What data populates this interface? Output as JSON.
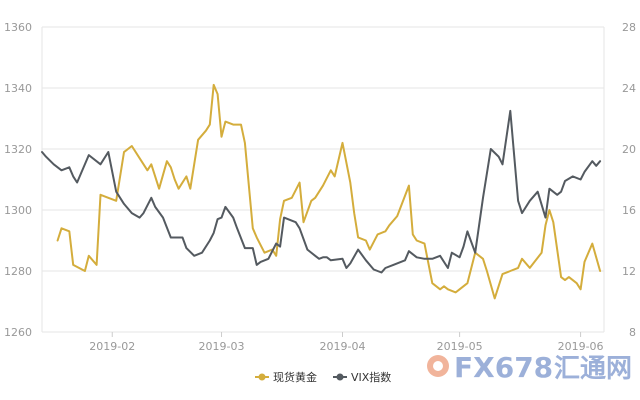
{
  "chart_data": {
    "type": "line",
    "x_range": [
      "2019-01-14",
      "2019-06-07"
    ],
    "x_tick_labels": [
      "2019-02",
      "2019-03",
      "2019-04",
      "2019-05",
      "2019-06"
    ],
    "y_left": {
      "min": 1260,
      "max": 1360,
      "ticks": [
        1260,
        1280,
        1300,
        1320,
        1340,
        1360
      ]
    },
    "y_right": {
      "min": 8,
      "max": 28,
      "ticks": [
        8,
        12,
        16,
        20,
        24,
        28
      ]
    },
    "grid": "horizontal",
    "legend_position": "bottom-center",
    "series": [
      {
        "name": "现货黄金",
        "axis": "left",
        "color": "#d4ad3c",
        "x": [
          "2019-01-18",
          "2019-01-19",
          "2019-01-21",
          "2019-01-22",
          "2019-01-25",
          "2019-01-26",
          "2019-01-28",
          "2019-01-29",
          "2019-01-31",
          "2019-02-02",
          "2019-02-04",
          "2019-02-06",
          "2019-02-08",
          "2019-02-10",
          "2019-02-11",
          "2019-02-13",
          "2019-02-15",
          "2019-02-16",
          "2019-02-17",
          "2019-02-18",
          "2019-02-20",
          "2019-02-21",
          "2019-02-22",
          "2019-02-23",
          "2019-02-25",
          "2019-02-26",
          "2019-02-27",
          "2019-02-28",
          "2019-03-01",
          "2019-03-02",
          "2019-03-04",
          "2019-03-06",
          "2019-03-07",
          "2019-03-09",
          "2019-03-10",
          "2019-03-12",
          "2019-03-14",
          "2019-03-15",
          "2019-03-16",
          "2019-03-17",
          "2019-03-19",
          "2019-03-21",
          "2019-03-22",
          "2019-03-24",
          "2019-03-25",
          "2019-03-27",
          "2019-03-29",
          "2019-03-30",
          "2019-04-01",
          "2019-04-03",
          "2019-04-04",
          "2019-04-05",
          "2019-04-07",
          "2019-04-08",
          "2019-04-10",
          "2019-04-12",
          "2019-04-13",
          "2019-04-15",
          "2019-04-18",
          "2019-04-19",
          "2019-04-20",
          "2019-04-22",
          "2019-04-24",
          "2019-04-26",
          "2019-04-27",
          "2019-04-28",
          "2019-04-30",
          "2019-05-01",
          "2019-05-03",
          "2019-05-05",
          "2019-05-07",
          "2019-05-08",
          "2019-05-10",
          "2019-05-12",
          "2019-05-14",
          "2019-05-16",
          "2019-05-17",
          "2019-05-19",
          "2019-05-22",
          "2019-05-23",
          "2019-05-24",
          "2019-05-25",
          "2019-05-27",
          "2019-05-28",
          "2019-05-29",
          "2019-05-31",
          "2019-06-01",
          "2019-06-02",
          "2019-06-04",
          "2019-06-06"
        ],
        "values": [
          1290,
          1294,
          1293,
          1282,
          1280,
          1285,
          1282,
          1305,
          1304,
          1303,
          1319,
          1321,
          1317,
          1313,
          1315,
          1307,
          1316,
          1314,
          1310,
          1307,
          1311,
          1307,
          1315,
          1323,
          1326,
          1328,
          1341,
          1338,
          1324,
          1329,
          1328,
          1328,
          1322,
          1294,
          1291,
          1286,
          1287,
          1285,
          1297,
          1303,
          1304,
          1309,
          1296,
          1303,
          1304,
          1308,
          1313,
          1311,
          1322,
          1309,
          1299,
          1291,
          1290,
          1287,
          1292,
          1293,
          1295,
          1298,
          1308,
          1292,
          1290,
          1289,
          1276,
          1274,
          1275,
          1274,
          1273,
          1274,
          1276,
          1286,
          1284,
          1280,
          1271,
          1279,
          1280,
          1281,
          1284,
          1281,
          1286,
          1295,
          1300,
          1296,
          1278,
          1277,
          1278,
          1276,
          1274,
          1283,
          1289,
          1280
        ]
      },
      {
        "name": "VIX指数",
        "axis": "right",
        "color": "#545a60",
        "x": [
          "2019-01-14",
          "2019-01-15",
          "2019-01-17",
          "2019-01-19",
          "2019-01-21",
          "2019-01-22",
          "2019-01-23",
          "2019-01-24",
          "2019-01-26",
          "2019-01-29",
          "2019-01-31",
          "2019-02-02",
          "2019-02-04",
          "2019-02-06",
          "2019-02-08",
          "2019-02-09",
          "2019-02-11",
          "2019-02-12",
          "2019-02-14",
          "2019-02-16",
          "2019-02-17",
          "2019-02-19",
          "2019-02-20",
          "2019-02-22",
          "2019-02-24",
          "2019-02-26",
          "2019-02-27",
          "2019-02-28",
          "2019-03-01",
          "2019-03-02",
          "2019-03-04",
          "2019-03-05",
          "2019-03-07",
          "2019-03-09",
          "2019-03-10",
          "2019-03-11",
          "2019-03-13",
          "2019-03-15",
          "2019-03-16",
          "2019-03-17",
          "2019-03-20",
          "2019-03-21",
          "2019-03-23",
          "2019-03-25",
          "2019-03-26",
          "2019-03-27",
          "2019-03-28",
          "2019-03-29",
          "2019-04-01",
          "2019-04-02",
          "2019-04-03",
          "2019-04-05",
          "2019-04-07",
          "2019-04-09",
          "2019-04-11",
          "2019-04-12",
          "2019-04-14",
          "2019-04-17",
          "2019-04-18",
          "2019-04-20",
          "2019-04-22",
          "2019-04-24",
          "2019-04-26",
          "2019-04-28",
          "2019-04-29",
          "2019-05-01",
          "2019-05-02",
          "2019-05-03",
          "2019-05-05",
          "2019-05-07",
          "2019-05-09",
          "2019-05-11",
          "2019-05-12",
          "2019-05-14",
          "2019-05-16",
          "2019-05-17",
          "2019-05-19",
          "2019-05-21",
          "2019-05-23",
          "2019-05-24",
          "2019-05-26",
          "2019-05-27",
          "2019-05-28",
          "2019-05-30",
          "2019-06-01",
          "2019-06-02",
          "2019-06-04",
          "2019-06-05",
          "2019-06-06"
        ],
        "values": [
          19.8,
          19.5,
          19.0,
          18.6,
          18.8,
          18.2,
          17.8,
          18.4,
          19.6,
          19.0,
          19.8,
          17.2,
          16.4,
          15.8,
          15.5,
          15.8,
          16.8,
          16.2,
          15.5,
          14.2,
          14.2,
          14.2,
          13.5,
          13.0,
          13.2,
          14.0,
          14.5,
          15.4,
          15.5,
          16.2,
          15.5,
          14.8,
          13.5,
          13.5,
          12.4,
          12.6,
          12.8,
          13.8,
          13.6,
          15.5,
          15.2,
          14.8,
          13.4,
          13.0,
          12.8,
          12.9,
          12.9,
          12.7,
          12.8,
          12.2,
          12.5,
          13.4,
          12.7,
          12.1,
          11.9,
          12.2,
          12.4,
          12.7,
          13.3,
          12.9,
          12.8,
          12.8,
          13.0,
          12.2,
          13.2,
          12.9,
          13.6,
          14.6,
          13.2,
          16.8,
          20.0,
          19.5,
          19.0,
          22.5,
          16.6,
          15.8,
          16.6,
          17.2,
          15.5,
          17.4,
          17.0,
          17.2,
          17.9,
          18.2,
          18.0,
          18.5,
          19.2,
          18.9,
          19.2
        ]
      }
    ],
    "legend": [
      {
        "label": "现货黄金",
        "series": 0
      },
      {
        "label": "VIX指数",
        "series": 1
      }
    ],
    "colors": {
      "gold": "#d4ad3c",
      "vix": "#545a60",
      "grid": "#e6e6e6",
      "tick_text": "#999999"
    }
  },
  "watermark": {
    "logo": "FX678 汇通网"
  }
}
